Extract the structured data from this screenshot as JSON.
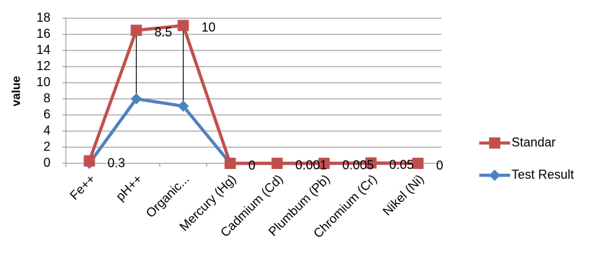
{
  "chart_data": {
    "type": "line",
    "stacked": true,
    "y_label": "value",
    "categories": [
      "Fe++",
      "pH++",
      "Organic...",
      "Mercury (Hg)",
      "Cadmium (Cd)",
      "Plumbum (Pb)",
      "Chromium (Cr)",
      "Nikel (Ni)"
    ],
    "series": [
      {
        "name": "Test Result",
        "color": "#4f81bd",
        "marker": "diamond",
        "values": [
          0,
          8,
          7.1,
          0,
          0,
          0,
          0,
          0
        ]
      },
      {
        "name": "Standar",
        "color": "#c0504d",
        "marker": "square",
        "values": [
          0.3,
          8.5,
          10,
          0,
          0.001,
          0.005,
          0.05,
          0
        ],
        "data_labels": true
      }
    ],
    "legend_order": [
      1,
      0
    ],
    "high_low_lines": true,
    "ylim": [
      0,
      18
    ],
    "yticks": [
      0,
      2,
      4,
      6,
      8,
      10,
      12,
      14,
      16,
      18
    ],
    "grid": true,
    "legend": "right"
  }
}
